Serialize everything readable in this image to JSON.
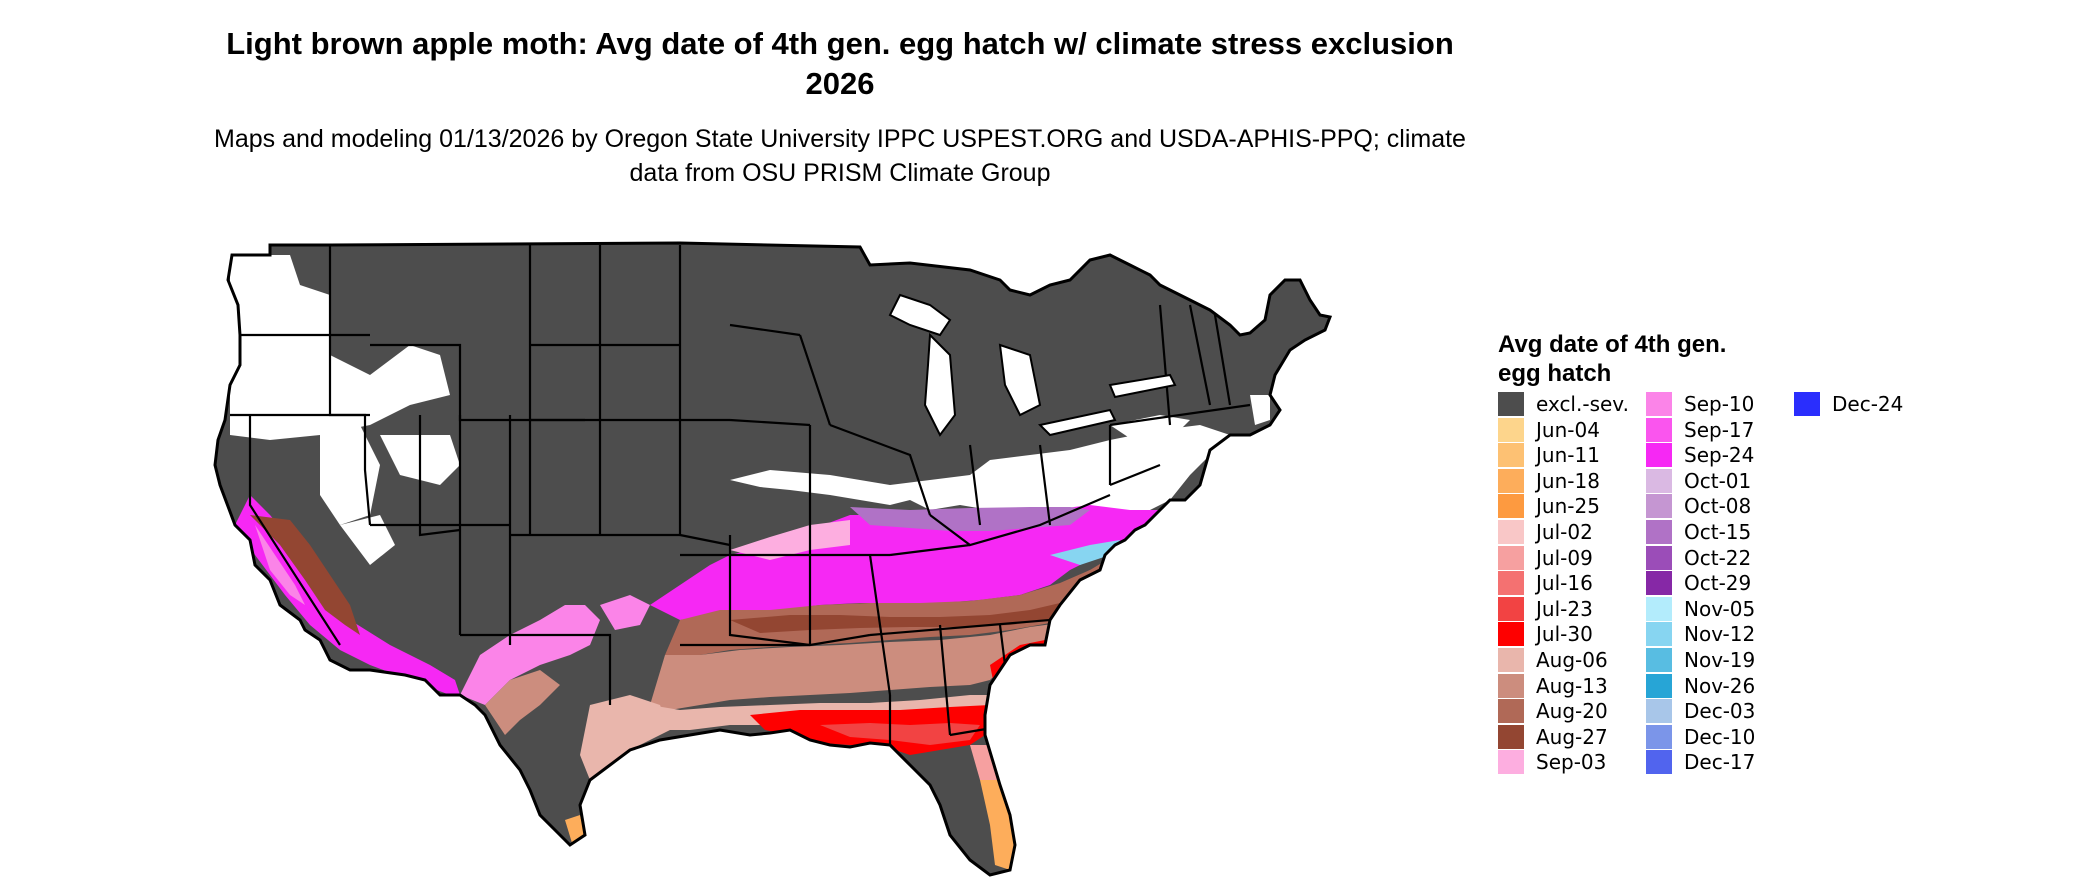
{
  "title": "Light brown apple moth: Avg date of 4th gen. egg hatch w/ climate stress exclusion 2026",
  "subtitle": "Maps and modeling 01/13/2026 by Oregon State University IPPC USPEST.ORG and USDA-APHIS-PPQ; climate data from OSU PRISM Climate Group",
  "legend": {
    "title": "Avg date of 4th gen. egg hatch",
    "items": [
      {
        "label": "excl.-sev.",
        "color": "#4d4d4d"
      },
      {
        "label": "Jun-04",
        "color": "#fdd58c"
      },
      {
        "label": "Jun-11",
        "color": "#fdc173"
      },
      {
        "label": "Jun-18",
        "color": "#fdad5b"
      },
      {
        "label": "Jun-25",
        "color": "#fd9a40"
      },
      {
        "label": "Jul-02",
        "color": "#f9c7c7"
      },
      {
        "label": "Jul-09",
        "color": "#f6a0a0"
      },
      {
        "label": "Jul-16",
        "color": "#f47171"
      },
      {
        "label": "Jul-23",
        "color": "#f24343"
      },
      {
        "label": "Jul-30",
        "color": "#fe0000"
      },
      {
        "label": "Aug-06",
        "color": "#e9b6ac"
      },
      {
        "label": "Aug-13",
        "color": "#cc8d7e"
      },
      {
        "label": "Aug-20",
        "color": "#b06957"
      },
      {
        "label": "Aug-27",
        "color": "#934632"
      },
      {
        "label": "Sep-03",
        "color": "#fdaee0"
      },
      {
        "label": "Sep-10",
        "color": "#fb84e8"
      },
      {
        "label": "Sep-17",
        "color": "#fa55ee"
      },
      {
        "label": "Sep-24",
        "color": "#f628f4"
      },
      {
        "label": "Oct-01",
        "color": "#dab9e3"
      },
      {
        "label": "Oct-08",
        "color": "#c596d2"
      },
      {
        "label": "Oct-15",
        "color": "#b072c6"
      },
      {
        "label": "Oct-22",
        "color": "#9b4db8"
      },
      {
        "label": "Oct-29",
        "color": "#8628a6"
      },
      {
        "label": "Nov-05",
        "color": "#b3ecfc"
      },
      {
        "label": "Nov-12",
        "color": "#87d5f1"
      },
      {
        "label": "Nov-19",
        "color": "#58bde2"
      },
      {
        "label": "Nov-26",
        "color": "#27a5d6"
      },
      {
        "label": "Dec-03",
        "color": "#a8c6e9"
      },
      {
        "label": "Dec-10",
        "color": "#7b95e9"
      },
      {
        "label": "Dec-17",
        "color": "#5164ee"
      },
      {
        "label": "Dec-24",
        "color": "#2a2efd"
      }
    ]
  }
}
